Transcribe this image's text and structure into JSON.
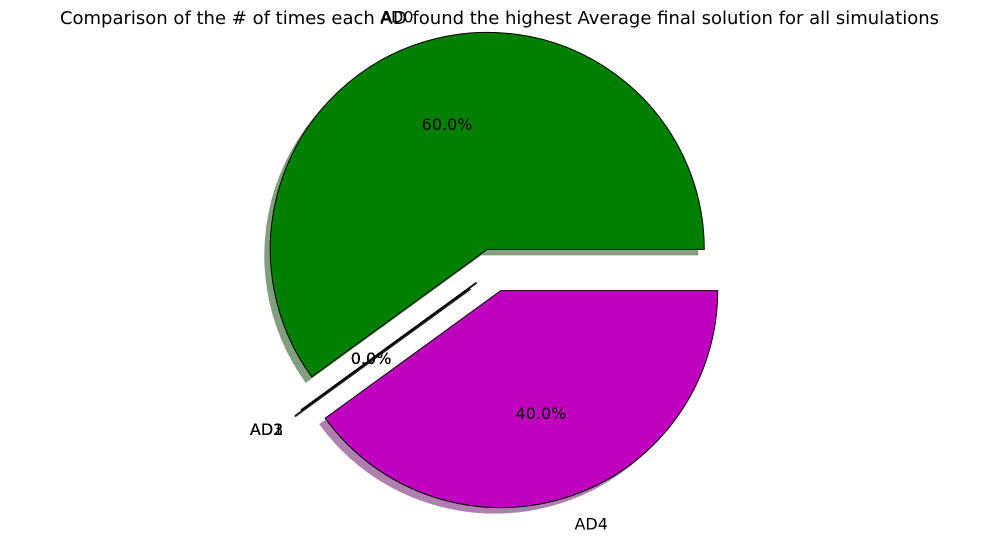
{
  "chart_data": {
    "type": "pie",
    "title": "Comparison of the # of times each AD found the highest Average final solution for all simulations",
    "slices": [
      {
        "label": "AD0",
        "value": 60.0,
        "pct_label": "60.0%",
        "color": "#008000",
        "explode": true
      },
      {
        "label": "AD1",
        "value": 0.0,
        "pct_label": "0.0%",
        "color": "#000000",
        "explode": true
      },
      {
        "label": "AD2",
        "value": 0.0,
        "pct_label": "0.0%",
        "color": "#000000",
        "explode": true
      },
      {
        "label": "AD3",
        "value": 0.0,
        "pct_label": "0.0%",
        "color": "#000000",
        "explode": true
      },
      {
        "label": "AD4",
        "value": 40.0,
        "pct_label": "40.0%",
        "color": "#bf00bf",
        "explode": true
      }
    ],
    "start_angle_deg": 0,
    "direction": "counterclockwise",
    "shadow": true,
    "edge_color": "#000000",
    "legend": "none"
  }
}
